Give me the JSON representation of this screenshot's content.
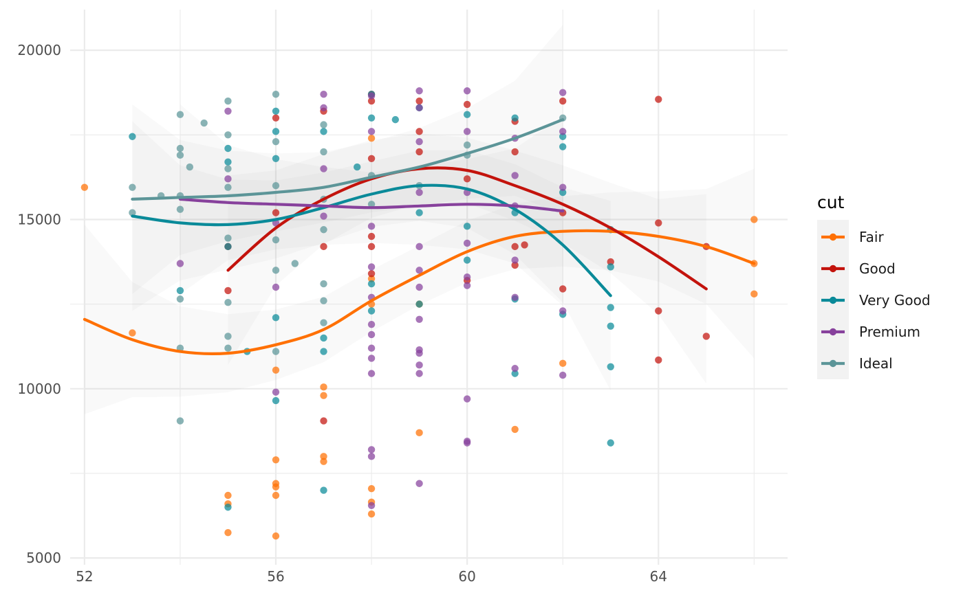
{
  "chart_data": {
    "type": "scatter",
    "title": "",
    "xlabel": "",
    "ylabel": "",
    "xlim": [
      51.7,
      66.7
    ],
    "ylim": [
      4800,
      21200
    ],
    "x_ticks": [
      52,
      56,
      60,
      64
    ],
    "x_tick_labels": [
      "52",
      "56",
      "60",
      "64"
    ],
    "y_ticks": [
      5000,
      10000,
      15000,
      20000
    ],
    "y_tick_labels": [
      "5000",
      "10000",
      "15000",
      "20000"
    ],
    "grid": true,
    "legend_position": "right",
    "legend_title": "cut",
    "series": [
      {
        "name": "Fair",
        "color": "#ff7003",
        "points": [
          [
            52,
            15950
          ],
          [
            53,
            11650
          ],
          [
            55,
            6850
          ],
          [
            55,
            6600
          ],
          [
            55,
            5750
          ],
          [
            56,
            10550
          ],
          [
            56,
            7900
          ],
          [
            56,
            7200
          ],
          [
            56,
            7100
          ],
          [
            56,
            6850
          ],
          [
            56,
            5650
          ],
          [
            57,
            10050
          ],
          [
            57,
            9800
          ],
          [
            57,
            8000
          ],
          [
            57,
            7850
          ],
          [
            58,
            17400
          ],
          [
            58,
            13250
          ],
          [
            58,
            12500
          ],
          [
            58,
            7050
          ],
          [
            58,
            6650
          ],
          [
            58,
            6300
          ],
          [
            59,
            12500
          ],
          [
            59,
            8700
          ],
          [
            61,
            8800
          ],
          [
            62,
            10750
          ],
          [
            66,
            15000
          ],
          [
            66,
            13700
          ],
          [
            66,
            12800
          ]
        ],
        "smooth": [
          [
            52,
            12050
          ],
          [
            53,
            11450
          ],
          [
            54,
            11100
          ],
          [
            55,
            11050
          ],
          [
            56,
            11300
          ],
          [
            57,
            11750
          ],
          [
            58,
            12600
          ],
          [
            59,
            13350
          ],
          [
            60,
            14050
          ],
          [
            61,
            14500
          ],
          [
            62,
            14650
          ],
          [
            63,
            14650
          ],
          [
            64,
            14500
          ],
          [
            65,
            14200
          ],
          [
            66,
            13700
          ]
        ]
      },
      {
        "name": "Good",
        "color": "#c3130c",
        "points": [
          [
            55,
            14200
          ],
          [
            55,
            12900
          ],
          [
            56,
            18000
          ],
          [
            56,
            15200
          ],
          [
            57,
            18200
          ],
          [
            57,
            14200
          ],
          [
            57,
            9050
          ],
          [
            58,
            18700
          ],
          [
            58,
            18500
          ],
          [
            58,
            16800
          ],
          [
            58,
            14500
          ],
          [
            58,
            14200
          ],
          [
            58,
            13400
          ],
          [
            59,
            18500
          ],
          [
            59,
            17600
          ],
          [
            59,
            17000
          ],
          [
            60,
            18400
          ],
          [
            60,
            16200
          ],
          [
            60,
            13200
          ],
          [
            61,
            17900
          ],
          [
            61,
            17000
          ],
          [
            61,
            14200
          ],
          [
            61,
            13650
          ],
          [
            61.2,
            14250
          ],
          [
            62,
            18500
          ],
          [
            62,
            15200
          ],
          [
            62,
            12950
          ],
          [
            63,
            13750
          ],
          [
            64,
            18550
          ],
          [
            64,
            14900
          ],
          [
            64,
            12300
          ],
          [
            64,
            10850
          ],
          [
            65,
            14200
          ],
          [
            65,
            11550
          ]
        ],
        "smooth": [
          [
            55,
            13500
          ],
          [
            56,
            14750
          ],
          [
            57,
            15600
          ],
          [
            58,
            16200
          ],
          [
            59,
            16500
          ],
          [
            60,
            16450
          ],
          [
            61,
            16000
          ],
          [
            62,
            15450
          ],
          [
            63,
            14750
          ],
          [
            64,
            13900
          ],
          [
            65,
            12950
          ]
        ]
      },
      {
        "name": "Very Good",
        "color": "#0a8a99",
        "points": [
          [
            53,
            17450
          ],
          [
            54,
            12900
          ],
          [
            55,
            17100
          ],
          [
            55,
            16700
          ],
          [
            55,
            14200
          ],
          [
            55,
            6500
          ],
          [
            55.4,
            11100
          ],
          [
            56,
            18200
          ],
          [
            56,
            17600
          ],
          [
            56,
            16800
          ],
          [
            56,
            12100
          ],
          [
            56,
            9650
          ],
          [
            57,
            17600
          ],
          [
            57,
            11500
          ],
          [
            57,
            11100
          ],
          [
            57,
            7000
          ],
          [
            57.7,
            16550
          ],
          [
            58,
            18700
          ],
          [
            58,
            18000
          ],
          [
            58,
            13100
          ],
          [
            58,
            12300
          ],
          [
            58.5,
            17950
          ],
          [
            59,
            18300
          ],
          [
            59,
            15200
          ],
          [
            59,
            12500
          ],
          [
            60,
            18100
          ],
          [
            60,
            14800
          ],
          [
            60,
            13800
          ],
          [
            61,
            18000
          ],
          [
            61,
            15200
          ],
          [
            61,
            12650
          ],
          [
            61,
            10450
          ],
          [
            62,
            17450
          ],
          [
            62,
            17150
          ],
          [
            62,
            15800
          ],
          [
            62,
            12200
          ],
          [
            63,
            14700
          ],
          [
            63,
            13600
          ],
          [
            63,
            12400
          ],
          [
            63,
            11850
          ],
          [
            63,
            10650
          ],
          [
            63,
            8400
          ]
        ],
        "smooth": [
          [
            53,
            15100
          ],
          [
            54,
            14900
          ],
          [
            55,
            14850
          ],
          [
            56,
            15000
          ],
          [
            57,
            15350
          ],
          [
            58,
            15750
          ],
          [
            59,
            16000
          ],
          [
            60,
            15900
          ],
          [
            61,
            15300
          ],
          [
            62,
            14250
          ],
          [
            63,
            12750
          ]
        ]
      },
      {
        "name": "Premium",
        "color": "#87419c",
        "points": [
          [
            54,
            13700
          ],
          [
            55,
            18200
          ],
          [
            55,
            16200
          ],
          [
            56,
            14900
          ],
          [
            56,
            13000
          ],
          [
            56,
            9900
          ],
          [
            57,
            18700
          ],
          [
            57,
            18300
          ],
          [
            57,
            16500
          ],
          [
            57,
            15100
          ],
          [
            58,
            18650
          ],
          [
            58,
            17600
          ],
          [
            58,
            14800
          ],
          [
            58,
            13600
          ],
          [
            58,
            12700
          ],
          [
            58,
            11900
          ],
          [
            58,
            11600
          ],
          [
            58,
            11200
          ],
          [
            58,
            10900
          ],
          [
            58,
            10450
          ],
          [
            58,
            8200
          ],
          [
            58,
            8000
          ],
          [
            58,
            6550
          ],
          [
            59,
            18800
          ],
          [
            59,
            18300
          ],
          [
            59,
            17300
          ],
          [
            59,
            15800
          ],
          [
            59,
            14200
          ],
          [
            59,
            13500
          ],
          [
            59,
            13000
          ],
          [
            59,
            12050
          ],
          [
            59,
            11150
          ],
          [
            59,
            11050
          ],
          [
            59,
            10700
          ],
          [
            59,
            10450
          ],
          [
            59,
            7200
          ],
          [
            60,
            18800
          ],
          [
            60,
            17600
          ],
          [
            60,
            15800
          ],
          [
            60,
            14300
          ],
          [
            60,
            13300
          ],
          [
            60,
            13050
          ],
          [
            60,
            9700
          ],
          [
            60,
            8450
          ],
          [
            60,
            8400
          ],
          [
            61,
            17400
          ],
          [
            61,
            16300
          ],
          [
            61,
            15400
          ],
          [
            61,
            13800
          ],
          [
            61,
            12700
          ],
          [
            61,
            10600
          ],
          [
            62,
            18750
          ],
          [
            62,
            17600
          ],
          [
            62,
            15950
          ],
          [
            62,
            12300
          ],
          [
            62,
            10400
          ]
        ],
        "smooth": [
          [
            54,
            15600
          ],
          [
            55,
            15500
          ],
          [
            56,
            15450
          ],
          [
            57,
            15400
          ],
          [
            58,
            15350
          ],
          [
            59,
            15400
          ],
          [
            60,
            15450
          ],
          [
            61,
            15400
          ],
          [
            62,
            15250
          ]
        ]
      },
      {
        "name": "Ideal",
        "color": "#5c9598",
        "points": [
          [
            53,
            15950
          ],
          [
            53,
            15200
          ],
          [
            53.6,
            15700
          ],
          [
            54,
            18100
          ],
          [
            54,
            17100
          ],
          [
            54,
            16900
          ],
          [
            54,
            15700
          ],
          [
            54,
            15300
          ],
          [
            54,
            12650
          ],
          [
            54,
            11200
          ],
          [
            54,
            9050
          ],
          [
            54.2,
            16550
          ],
          [
            54.5,
            17850
          ],
          [
            55,
            18500
          ],
          [
            55,
            17500
          ],
          [
            55,
            16500
          ],
          [
            55,
            15950
          ],
          [
            55,
            14450
          ],
          [
            55,
            11550
          ],
          [
            55,
            11200
          ],
          [
            55,
            12550
          ],
          [
            56,
            18700
          ],
          [
            56,
            17300
          ],
          [
            56,
            16000
          ],
          [
            56,
            14400
          ],
          [
            56,
            13500
          ],
          [
            56,
            11100
          ],
          [
            56.4,
            13700
          ],
          [
            57,
            17800
          ],
          [
            57,
            17000
          ],
          [
            57,
            15600
          ],
          [
            57,
            14700
          ],
          [
            57,
            13100
          ],
          [
            57,
            12600
          ],
          [
            57,
            11950
          ],
          [
            58,
            16300
          ],
          [
            58,
            15450
          ],
          [
            59,
            16000
          ],
          [
            60,
            17200
          ],
          [
            60,
            16900
          ],
          [
            62,
            18000
          ]
        ],
        "smooth": [
          [
            53,
            15600
          ],
          [
            54,
            15650
          ],
          [
            55,
            15700
          ],
          [
            56,
            15800
          ],
          [
            57,
            15950
          ],
          [
            58,
            16250
          ],
          [
            59,
            16550
          ],
          [
            60,
            16950
          ],
          [
            61,
            17400
          ],
          [
            62,
            17950
          ]
        ]
      }
    ]
  }
}
